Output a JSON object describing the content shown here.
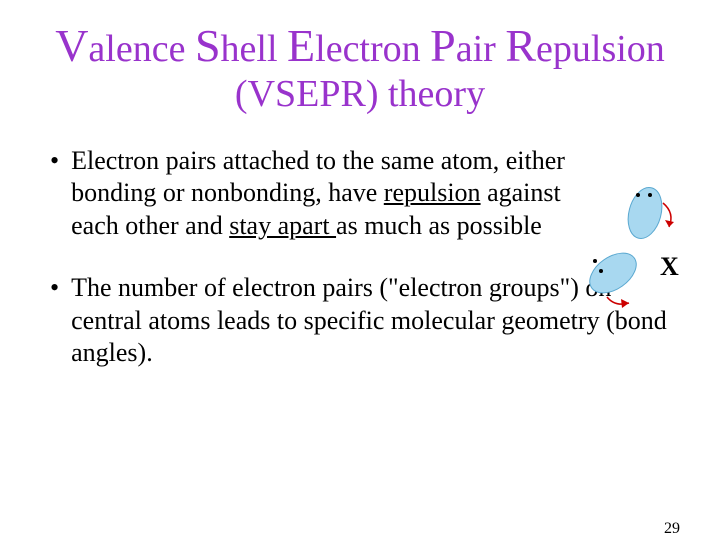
{
  "title": {
    "line1_parts": [
      {
        "cap": "V",
        "rest": "alence "
      },
      {
        "cap": "S",
        "rest": "hell "
      },
      {
        "cap": "E",
        "rest": "lectron "
      },
      {
        "cap": "P",
        "rest": "air "
      },
      {
        "cap": "R",
        "rest": "epulsion"
      }
    ],
    "line2": "(VSEPR) theory",
    "color": "#9933cc",
    "fontsize_cap": 46,
    "fontsize_rest": 38
  },
  "bullets": [
    {
      "marker": "•",
      "segments": [
        {
          "text": "Electron pairs attached to the same atom, either bonding or nonbonding, have ",
          "underline": false
        },
        {
          "text": "repulsion",
          "underline": true
        },
        {
          "text": " against each other and ",
          "underline": false
        },
        {
          "text": "stay apart ",
          "underline": true
        },
        {
          "text": "as much as possible",
          "underline": false
        }
      ]
    },
    {
      "marker": "•",
      "segments": [
        {
          "text": "The number of electron pairs (\"electron groups\") on central atoms leads to specific molecular geometry (bond angles).",
          "underline": false
        }
      ]
    }
  ],
  "diagram": {
    "label_x": "X",
    "label_fontsize": 26,
    "lobe_fill": "#a8d8f0",
    "lobe_stroke": "#5aa8d0",
    "dot_color": "#000000",
    "arrow_color": "#cc0000",
    "background": "#ffffff"
  },
  "page_number": "29",
  "colors": {
    "text": "#000000",
    "background": "#ffffff"
  }
}
